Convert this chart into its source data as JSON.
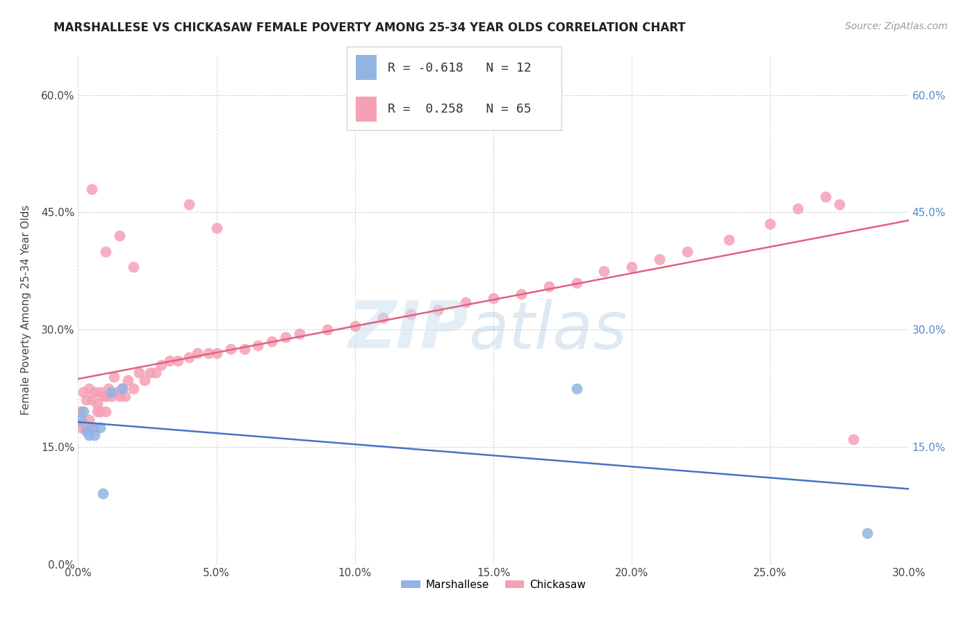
{
  "title": "MARSHALLESE VS CHICKASAW FEMALE POVERTY AMONG 25-34 YEAR OLDS CORRELATION CHART",
  "source": "Source: ZipAtlas.com",
  "ylabel": "Female Poverty Among 25-34 Year Olds",
  "xlim": [
    0.0,
    0.3
  ],
  "ylim": [
    0.0,
    0.65
  ],
  "marshallese_R": -0.618,
  "marshallese_N": 12,
  "chickasaw_R": 0.258,
  "chickasaw_N": 65,
  "marshallese_color": "#92b4e3",
  "chickasaw_color": "#f5a0b5",
  "marshallese_line_color": "#4472c4",
  "chickasaw_line_color": "#e06080",
  "background_color": "#ffffff",
  "grid_color": "#d4d4d4",
  "marshallese_x": [
    0.001,
    0.002,
    0.003,
    0.004,
    0.005,
    0.006,
    0.008,
    0.009,
    0.012,
    0.016,
    0.18,
    0.285
  ],
  "marshallese_y": [
    0.185,
    0.195,
    0.17,
    0.165,
    0.175,
    0.165,
    0.175,
    0.09,
    0.22,
    0.225,
    0.225,
    0.04
  ],
  "chickasaw_x": [
    0.001,
    0.001,
    0.002,
    0.002,
    0.003,
    0.003,
    0.004,
    0.004,
    0.005,
    0.005,
    0.006,
    0.006,
    0.007,
    0.007,
    0.008,
    0.008,
    0.009,
    0.01,
    0.01,
    0.011,
    0.012,
    0.013,
    0.014,
    0.015,
    0.016,
    0.017,
    0.018,
    0.02,
    0.022,
    0.024,
    0.026,
    0.028,
    0.03,
    0.033,
    0.036,
    0.04,
    0.043,
    0.047,
    0.05,
    0.055,
    0.06,
    0.065,
    0.07,
    0.075,
    0.08,
    0.09,
    0.1,
    0.11,
    0.12,
    0.13,
    0.14,
    0.15,
    0.16,
    0.17,
    0.18,
    0.19,
    0.2,
    0.21,
    0.22,
    0.235,
    0.25,
    0.26,
    0.27,
    0.275,
    0.28
  ],
  "chickasaw_y": [
    0.195,
    0.175,
    0.22,
    0.18,
    0.21,
    0.175,
    0.225,
    0.185,
    0.21,
    0.175,
    0.22,
    0.175,
    0.205,
    0.195,
    0.22,
    0.195,
    0.215,
    0.215,
    0.195,
    0.225,
    0.215,
    0.24,
    0.22,
    0.215,
    0.225,
    0.215,
    0.235,
    0.225,
    0.245,
    0.235,
    0.245,
    0.245,
    0.255,
    0.26,
    0.26,
    0.265,
    0.27,
    0.27,
    0.27,
    0.275,
    0.275,
    0.28,
    0.285,
    0.29,
    0.295,
    0.3,
    0.305,
    0.315,
    0.32,
    0.325,
    0.335,
    0.34,
    0.345,
    0.355,
    0.36,
    0.375,
    0.38,
    0.39,
    0.4,
    0.415,
    0.435,
    0.455,
    0.47,
    0.46,
    0.16
  ],
  "chickasaw_outliers_x": [
    0.005,
    0.01,
    0.015,
    0.02,
    0.04,
    0.05
  ],
  "chickasaw_outliers_y": [
    0.48,
    0.4,
    0.42,
    0.38,
    0.46,
    0.43
  ]
}
